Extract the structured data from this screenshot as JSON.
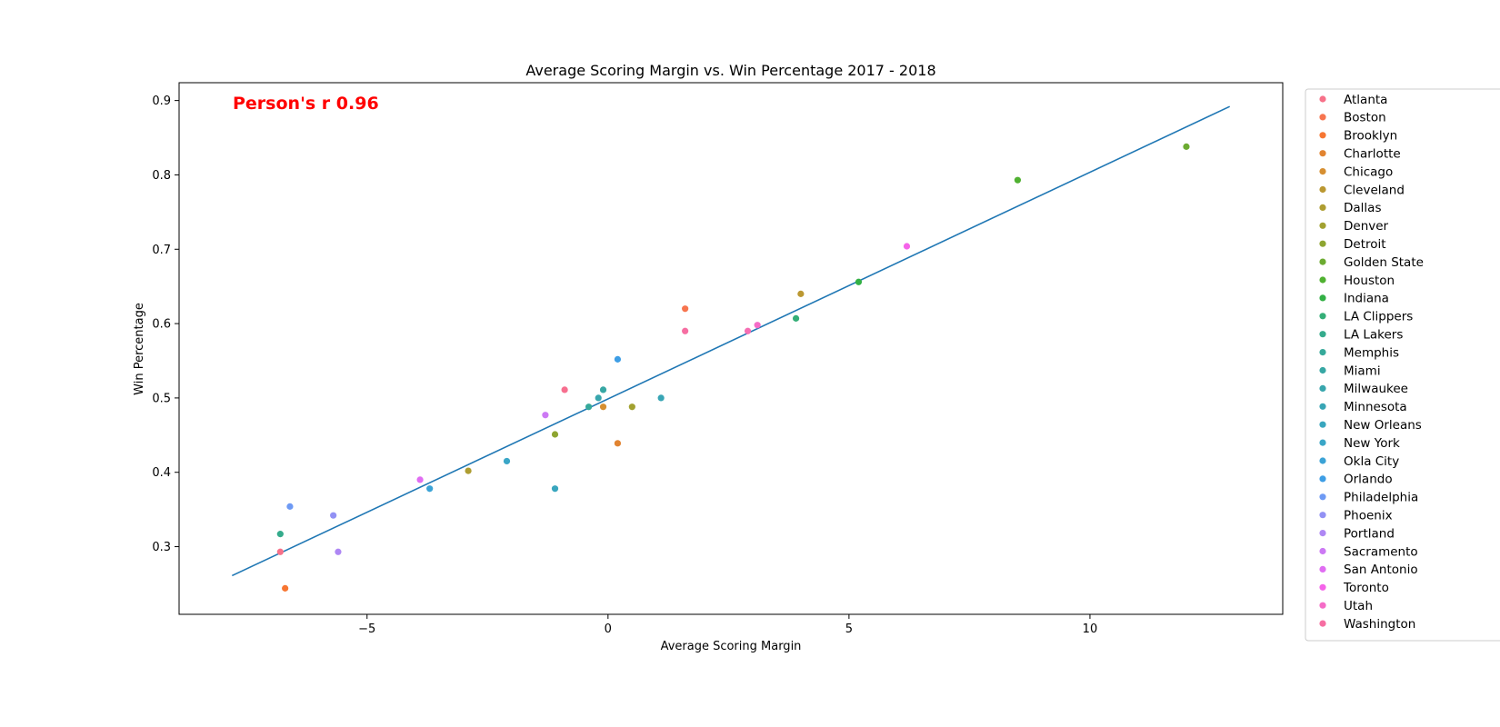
{
  "chart_data": {
    "type": "scatter",
    "title": "Average Scoring Margin vs. Win Percentage 2017 - 2018",
    "xlabel": "Average Scoring Margin",
    "ylabel": "Win Percentage",
    "xlim": [
      -8.9,
      14.0
    ],
    "ylim": [
      0.209,
      0.924
    ],
    "xticks": [
      -5,
      0,
      5,
      10
    ],
    "xtick_labels": [
      "−5",
      "0",
      "5",
      "10"
    ],
    "yticks": [
      0.3,
      0.4,
      0.5,
      0.6,
      0.7,
      0.8,
      0.9
    ],
    "ytick_labels": [
      "0.3",
      "0.4",
      "0.5",
      "0.6",
      "0.7",
      "0.8",
      "0.9"
    ],
    "grid": false,
    "legend_position": "outside-right",
    "annotation": "Person's r 0.96",
    "regression_line": {
      "x": [
        -7.8,
        12.9
      ],
      "y": [
        0.261,
        0.892
      ],
      "color": "#1f77b4"
    },
    "points": [
      {
        "team": "Atlanta",
        "x": -6.8,
        "y": 0.293,
        "color": "#f77189"
      },
      {
        "team": "Boston",
        "x": 1.6,
        "y": 0.62,
        "color": "#f7754f"
      },
      {
        "team": "Brooklyn",
        "x": -6.7,
        "y": 0.244,
        "color": "#f77632"
      },
      {
        "team": "Charlotte",
        "x": 0.2,
        "y": 0.439,
        "color": "#e18431"
      },
      {
        "team": "Chicago",
        "x": -0.1,
        "y": 0.488,
        "color": "#d68f31"
      },
      {
        "team": "Cleveland",
        "x": 4.0,
        "y": 0.64,
        "color": "#bb9832"
      },
      {
        "team": "Dallas",
        "x": -2.9,
        "y": 0.402,
        "color": "#ae9d31"
      },
      {
        "team": "Denver",
        "x": 0.5,
        "y": 0.488,
        "color": "#a2a130"
      },
      {
        "team": "Detroit",
        "x": -1.1,
        "y": 0.451,
        "color": "#8ea531"
      },
      {
        "team": "Golden State",
        "x": 12.0,
        "y": 0.838,
        "color": "#6cab31"
      },
      {
        "team": "Houston",
        "x": 8.5,
        "y": 0.793,
        "color": "#50b131"
      },
      {
        "team": "Indiana",
        "x": 5.2,
        "y": 0.656,
        "color": "#33b045"
      },
      {
        "team": "LA Clippers",
        "x": 3.9,
        "y": 0.607,
        "color": "#34ae77"
      },
      {
        "team": "LA Lakers",
        "x": -6.8,
        "y": 0.317,
        "color": "#35ab8c"
      },
      {
        "team": "Memphis",
        "x": -0.4,
        "y": 0.488,
        "color": "#36a99a"
      },
      {
        "team": "Miami",
        "x": -0.1,
        "y": 0.511,
        "color": "#37a7a4"
      },
      {
        "team": "Milwaukee",
        "x": -0.2,
        "y": 0.5,
        "color": "#38a6ad"
      },
      {
        "team": "Minnesota",
        "x": 1.1,
        "y": 0.5,
        "color": "#38a5b5"
      },
      {
        "team": "New Orleans",
        "x": -1.1,
        "y": 0.378,
        "color": "#39a6be"
      },
      {
        "team": "New York",
        "x": -2.1,
        "y": 0.415,
        "color": "#3aa6c7"
      },
      {
        "team": "Okla City",
        "x": -3.7,
        "y": 0.378,
        "color": "#3ba3d6"
      },
      {
        "team": "Orlando",
        "x": 0.2,
        "y": 0.552,
        "color": "#3e9ee5"
      },
      {
        "team": "Philadelphia",
        "x": -6.6,
        "y": 0.354,
        "color": "#6e9af4"
      },
      {
        "team": "Phoenix",
        "x": -5.7,
        "y": 0.342,
        "color": "#9291f4"
      },
      {
        "team": "Portland",
        "x": -5.6,
        "y": 0.293,
        "color": "#ae87f4"
      },
      {
        "team": "Sacramento",
        "x": -1.3,
        "y": 0.477,
        "color": "#cc79f4"
      },
      {
        "team": "San Antonio",
        "x": -3.9,
        "y": 0.39,
        "color": "#e06df2"
      },
      {
        "team": "Toronto",
        "x": 6.2,
        "y": 0.704,
        "color": "#f563e9"
      },
      {
        "team": "Utah",
        "x": 3.1,
        "y": 0.598,
        "color": "#f56cc7"
      },
      {
        "team": "Washington",
        "x": 2.9,
        "y": 0.59,
        "color": "#f56eb3"
      },
      {
        "team": "Washington",
        "x": 1.6,
        "y": 0.59,
        "color": "#f66ea2"
      },
      {
        "team": "Atlanta",
        "x": -0.9,
        "y": 0.511,
        "color": "#f76f8f"
      }
    ],
    "legend": [
      {
        "label": "Atlanta",
        "color": "#f77189"
      },
      {
        "label": "Boston",
        "color": "#f7754f"
      },
      {
        "label": "Brooklyn",
        "color": "#f77632"
      },
      {
        "label": "Charlotte",
        "color": "#e18431"
      },
      {
        "label": "Chicago",
        "color": "#d68f31"
      },
      {
        "label": "Cleveland",
        "color": "#bb9832"
      },
      {
        "label": "Dallas",
        "color": "#ae9d31"
      },
      {
        "label": "Denver",
        "color": "#a2a130"
      },
      {
        "label": "Detroit",
        "color": "#8ea531"
      },
      {
        "label": "Golden State",
        "color": "#6cab31"
      },
      {
        "label": "Houston",
        "color": "#50b131"
      },
      {
        "label": "Indiana",
        "color": "#33b045"
      },
      {
        "label": "LA Clippers",
        "color": "#34ae77"
      },
      {
        "label": "LA Lakers",
        "color": "#35ab8c"
      },
      {
        "label": "Memphis",
        "color": "#36a99a"
      },
      {
        "label": "Miami",
        "color": "#37a7a4"
      },
      {
        "label": "Milwaukee",
        "color": "#38a6ad"
      },
      {
        "label": "Minnesota",
        "color": "#38a5b5"
      },
      {
        "label": "New Orleans",
        "color": "#39a6be"
      },
      {
        "label": "New York",
        "color": "#3aa6c7"
      },
      {
        "label": "Okla City",
        "color": "#3ba3d6"
      },
      {
        "label": "Orlando",
        "color": "#3e9ee5"
      },
      {
        "label": "Philadelphia",
        "color": "#6e9af4"
      },
      {
        "label": "Phoenix",
        "color": "#9291f4"
      },
      {
        "label": "Portland",
        "color": "#ae87f4"
      },
      {
        "label": "Sacramento",
        "color": "#cc79f4"
      },
      {
        "label": "San Antonio",
        "color": "#e06df2"
      },
      {
        "label": "Toronto",
        "color": "#f563e9"
      },
      {
        "label": "Utah",
        "color": "#f56cc7"
      },
      {
        "label": "Washington",
        "color": "#f66ea2"
      }
    ]
  }
}
